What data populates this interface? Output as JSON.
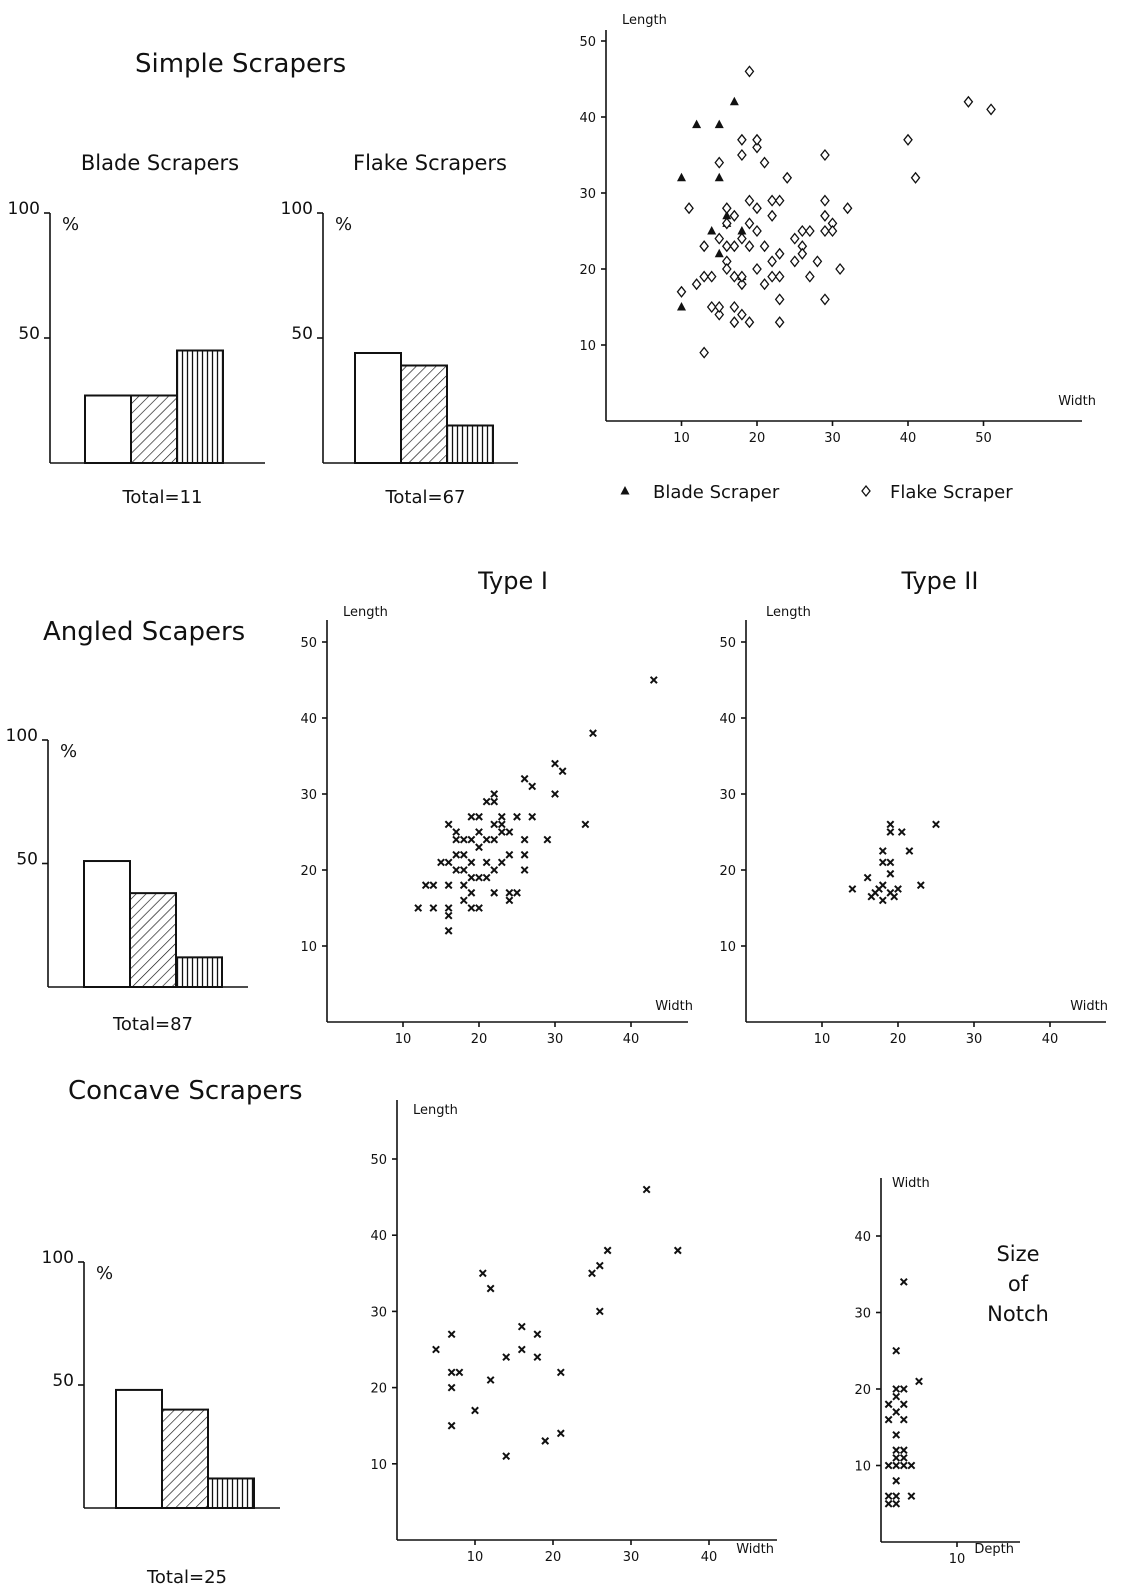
{
  "figure": {
    "simple_title": "Simple Scrapers",
    "angled_title": "Angled Scapers",
    "concave_title": "Concave Scrapers",
    "notch_label": [
      "Size",
      "of",
      "Notch"
    ]
  },
  "colors": {
    "ink": "#111111",
    "paper": "#ffffff"
  },
  "chart_data": [
    {
      "id": "blade-hist",
      "type": "bar",
      "title": "Blade Scrapers",
      "ylabel": "%",
      "yticks": [
        "100",
        "50"
      ],
      "ylim": [
        0,
        100
      ],
      "values": [
        27,
        27,
        45
      ],
      "fills": [
        "plain",
        "diagonal-hatch",
        "vertical-hatch"
      ],
      "total": "Total=11"
    },
    {
      "id": "flake-hist",
      "type": "bar",
      "title": "Flake Scrapers",
      "ylabel": "%",
      "yticks": [
        "100",
        "50"
      ],
      "ylim": [
        0,
        100
      ],
      "values": [
        44,
        39,
        15
      ],
      "fills": [
        "plain",
        "diagonal-hatch",
        "vertical-hatch"
      ],
      "total": "Total=67"
    },
    {
      "id": "simple-scatter",
      "type": "scatter",
      "xlabel": "Width",
      "ylabel": "Length",
      "xlim": [
        0,
        62
      ],
      "ylim": [
        0,
        52
      ],
      "xticks": [
        "10",
        "20",
        "30",
        "40",
        "50"
      ],
      "yticks": [
        "10",
        "20",
        "30",
        "40",
        "50"
      ],
      "series": [
        {
          "name": "Blade Scraper",
          "marker": "triangle",
          "points": [
            [
              10,
              15
            ],
            [
              10,
              32
            ],
            [
              12,
              39
            ],
            [
              14,
              25
            ],
            [
              15,
              32
            ],
            [
              15,
              39
            ],
            [
              15,
              22
            ],
            [
              16,
              27
            ],
            [
              17,
              42
            ],
            [
              18,
              25
            ],
            [
              18,
              19
            ],
            [
              16,
              26
            ]
          ]
        },
        {
          "name": "Flake Scraper",
          "marker": "diamond",
          "points": [
            [
              10,
              17
            ],
            [
              11,
              28
            ],
            [
              12,
              18
            ],
            [
              13,
              19
            ],
            [
              13,
              23
            ],
            [
              13,
              9
            ],
            [
              14,
              19
            ],
            [
              14,
              15
            ],
            [
              15,
              24
            ],
            [
              15,
              34
            ],
            [
              15,
              14
            ],
            [
              15,
              15
            ],
            [
              16,
              21
            ],
            [
              16,
              23
            ],
            [
              16,
              28
            ],
            [
              16,
              26
            ],
            [
              16,
              20
            ],
            [
              17,
              19
            ],
            [
              17,
              23
            ],
            [
              17,
              27
            ],
            [
              17,
              15
            ],
            [
              17,
              13
            ],
            [
              18,
              18
            ],
            [
              18,
              24
            ],
            [
              18,
              37
            ],
            [
              18,
              35
            ],
            [
              18,
              14
            ],
            [
              18,
              19
            ],
            [
              19,
              23
            ],
            [
              19,
              26
            ],
            [
              19,
              29
            ],
            [
              19,
              46
            ],
            [
              19,
              13
            ],
            [
              20,
              20
            ],
            [
              20,
              25
            ],
            [
              20,
              28
            ],
            [
              20,
              36
            ],
            [
              20,
              37
            ],
            [
              21,
              23
            ],
            [
              21,
              18
            ],
            [
              21,
              34
            ],
            [
              22,
              19
            ],
            [
              22,
              21
            ],
            [
              22,
              27
            ],
            [
              22,
              29
            ],
            [
              23,
              19
            ],
            [
              23,
              29
            ],
            [
              23,
              22
            ],
            [
              23,
              16
            ],
            [
              23,
              13
            ],
            [
              24,
              32
            ],
            [
              25,
              24
            ],
            [
              25,
              21
            ],
            [
              26,
              23
            ],
            [
              26,
              25
            ],
            [
              26,
              22
            ],
            [
              27,
              25
            ],
            [
              27,
              19
            ],
            [
              28,
              21
            ],
            [
              29,
              25
            ],
            [
              29,
              27
            ],
            [
              29,
              29
            ],
            [
              29,
              35
            ],
            [
              29,
              16
            ],
            [
              30,
              26
            ],
            [
              30,
              25
            ],
            [
              31,
              20
            ],
            [
              32,
              28
            ],
            [
              40,
              37
            ],
            [
              41,
              32
            ],
            [
              48,
              42
            ],
            [
              51,
              41
            ]
          ]
        }
      ]
    },
    {
      "id": "type1-scatter",
      "type": "scatter",
      "title": "Type I",
      "xlabel": "Width",
      "ylabel": "Length",
      "xlim": [
        0,
        47
      ],
      "ylim": [
        0,
        53
      ],
      "xticks": [
        "10",
        "20",
        "30",
        "40"
      ],
      "yticks": [
        "10",
        "20",
        "30",
        "40",
        "50"
      ],
      "series": [
        {
          "marker": "x",
          "points": [
            [
              12,
              15
            ],
            [
              13,
              18
            ],
            [
              14,
              15
            ],
            [
              14,
              18
            ],
            [
              15,
              21
            ],
            [
              16,
              12
            ],
            [
              16,
              14
            ],
            [
              16,
              15
            ],
            [
              16,
              18
            ],
            [
              16,
              21
            ],
            [
              16,
              26
            ],
            [
              17,
              20
            ],
            [
              17,
              22
            ],
            [
              17,
              24
            ],
            [
              17,
              25
            ],
            [
              18,
              16
            ],
            [
              18,
              18
            ],
            [
              18,
              20
            ],
            [
              18,
              22
            ],
            [
              18,
              24
            ],
            [
              19,
              15
            ],
            [
              19,
              17
            ],
            [
              19,
              19
            ],
            [
              19,
              21
            ],
            [
              19,
              24
            ],
            [
              19,
              27
            ],
            [
              20,
              15
            ],
            [
              20,
              19
            ],
            [
              20,
              23
            ],
            [
              20,
              25
            ],
            [
              20,
              27
            ],
            [
              21,
              19
            ],
            [
              21,
              21
            ],
            [
              21,
              24
            ],
            [
              21,
              29
            ],
            [
              22,
              17
            ],
            [
              22,
              20
            ],
            [
              22,
              24
            ],
            [
              22,
              26
            ],
            [
              22,
              29
            ],
            [
              22,
              30
            ],
            [
              23,
              21
            ],
            [
              23,
              25
            ],
            [
              23,
              26
            ],
            [
              23,
              27
            ],
            [
              24,
              16
            ],
            [
              24,
              17
            ],
            [
              24,
              22
            ],
            [
              24,
              25
            ],
            [
              25,
              17
            ],
            [
              25,
              27
            ],
            [
              26,
              20
            ],
            [
              26,
              22
            ],
            [
              26,
              24
            ],
            [
              26,
              32
            ],
            [
              27,
              27
            ],
            [
              27,
              31
            ],
            [
              29,
              24
            ],
            [
              30,
              30
            ],
            [
              30,
              34
            ],
            [
              31,
              33
            ],
            [
              34,
              26
            ],
            [
              35,
              38
            ],
            [
              43,
              45
            ]
          ]
        }
      ]
    },
    {
      "id": "type2-scatter",
      "type": "scatter",
      "title": "Type II",
      "xlabel": "Width",
      "ylabel": "Length",
      "xlim": [
        0,
        47
      ],
      "ylim": [
        0,
        53
      ],
      "xticks": [
        "10",
        "20",
        "30",
        "40"
      ],
      "yticks": [
        "10",
        "20",
        "30",
        "40",
        "50"
      ],
      "series": [
        {
          "marker": "x",
          "points": [
            [
              14,
              17.5
            ],
            [
              16,
              19
            ],
            [
              16.5,
              16.5
            ],
            [
              17,
              17
            ],
            [
              17.5,
              17.5
            ],
            [
              18,
              16
            ],
            [
              18,
              18
            ],
            [
              18,
              21
            ],
            [
              18,
              22.5
            ],
            [
              19,
              17
            ],
            [
              19,
              19.5
            ],
            [
              19,
              21
            ],
            [
              19,
              25
            ],
            [
              19,
              26
            ],
            [
              19.5,
              16.5
            ],
            [
              20,
              17.5
            ],
            [
              20.5,
              25
            ],
            [
              21.5,
              22.5
            ],
            [
              23,
              18
            ],
            [
              25,
              26
            ]
          ]
        }
      ]
    },
    {
      "id": "concave-hist",
      "type": "bar",
      "ylabel": "%",
      "yticks": [
        "100",
        "50"
      ],
      "ylim": [
        0,
        100
      ],
      "values": [
        48,
        40,
        12
      ],
      "fills": [
        "plain",
        "diagonal-hatch",
        "vertical-hatch"
      ],
      "total": "Total=25"
    },
    {
      "id": "angled-hist",
      "type": "bar",
      "ylabel": "%",
      "yticks": [
        "100",
        "50"
      ],
      "ylim": [
        0,
        100
      ],
      "values": [
        51,
        38,
        12
      ],
      "fills": [
        "plain",
        "diagonal-hatch",
        "vertical-hatch"
      ],
      "total": "Total=87"
    },
    {
      "id": "concave-scatter",
      "type": "scatter",
      "xlabel": "Width",
      "ylabel": "Length",
      "xlim": [
        0,
        48
      ],
      "ylim": [
        0,
        57
      ],
      "xticks": [
        "10",
        "20",
        "30",
        "40"
      ],
      "yticks": [
        "10",
        "20",
        "30",
        "40",
        "50"
      ],
      "series": [
        {
          "marker": "x",
          "points": [
            [
              5,
              25
            ],
            [
              7,
              27
            ],
            [
              7,
              22
            ],
            [
              7,
              20
            ],
            [
              7,
              15
            ],
            [
              8,
              22
            ],
            [
              10,
              17
            ],
            [
              11,
              35
            ],
            [
              12,
              21
            ],
            [
              12,
              33
            ],
            [
              14,
              11
            ],
            [
              14,
              24
            ],
            [
              16,
              25
            ],
            [
              16,
              28
            ],
            [
              18,
              24
            ],
            [
              18,
              27
            ],
            [
              19,
              13
            ],
            [
              21,
              14
            ],
            [
              21,
              22
            ],
            [
              25,
              35
            ],
            [
              26,
              36
            ],
            [
              26,
              30
            ],
            [
              27,
              38
            ],
            [
              32,
              46
            ],
            [
              36,
              38
            ]
          ]
        }
      ]
    },
    {
      "id": "notch-scatter",
      "type": "scatter",
      "xlabel": "Depth",
      "ylabel": "Width",
      "xlim": [
        0,
        14
      ],
      "ylim": [
        0,
        46
      ],
      "xticks": [
        "10"
      ],
      "yticks": [
        "10",
        "20",
        "30",
        "40"
      ],
      "series": [
        {
          "marker": "x",
          "points": [
            [
              1,
              5
            ],
            [
              1,
              6
            ],
            [
              1,
              10
            ],
            [
              1,
              16
            ],
            [
              1,
              18
            ],
            [
              2,
              5
            ],
            [
              2,
              6
            ],
            [
              2,
              8
            ],
            [
              2,
              10
            ],
            [
              2,
              11
            ],
            [
              2,
              12
            ],
            [
              2,
              14
            ],
            [
              2,
              17
            ],
            [
              2,
              19
            ],
            [
              2,
              20
            ],
            [
              2,
              25
            ],
            [
              3,
              10
            ],
            [
              3,
              11
            ],
            [
              3,
              12
            ],
            [
              3,
              16
            ],
            [
              3,
              18
            ],
            [
              3,
              20
            ],
            [
              3,
              34
            ],
            [
              4,
              6
            ],
            [
              4,
              10
            ],
            [
              5,
              21
            ]
          ]
        }
      ]
    }
  ]
}
